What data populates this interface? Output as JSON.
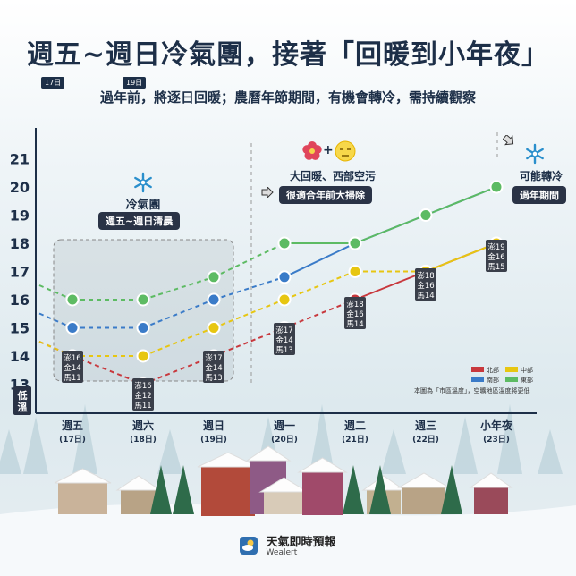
{
  "header": {
    "title": "週五~週日冷氣團，接著「回暖到小年夜」",
    "subtitle": "過年前，將逐日回暖；農曆年節期間，有機會轉冷，需持續觀察",
    "tag_17": "17日",
    "tag_19": "19日"
  },
  "annotations": {
    "cold_front": {
      "label": "冷氣團",
      "pill": "週五~週日清晨"
    },
    "warm": {
      "label": "大回暖、西部空污",
      "pill": "很適合年前大掃除"
    },
    "cooling": {
      "label": "可能轉冷",
      "pill": "過年期間"
    }
  },
  "footnote": "本圖為「市區溫度」，空曠地區溫度將更低",
  "footer": {
    "brand": "天氣即時預報",
    "brand_en": "Wealert"
  },
  "chart_data": {
    "type": "line",
    "title": "",
    "ylabel": "低溫",
    "ylim": [
      12,
      21
    ],
    "yticks": [
      13,
      14,
      15,
      16,
      17,
      18,
      19,
      20,
      21
    ],
    "categories": [
      {
        "day": "週五",
        "date": "(17日)"
      },
      {
        "day": "週六",
        "date": "(18日)"
      },
      {
        "day": "週日",
        "date": "(19日)"
      },
      {
        "day": "週一",
        "date": "(20日)"
      },
      {
        "day": "週二",
        "date": "(21日)"
      },
      {
        "day": "週三",
        "date": "(22日)"
      },
      {
        "day": "小年夜",
        "date": "(23日)"
      }
    ],
    "series": [
      {
        "name": "北部",
        "color": "#c8383d",
        "values": [
          14,
          13,
          14,
          15,
          16,
          17,
          18
        ]
      },
      {
        "name": "南部",
        "color": "#3a7bc8",
        "values": [
          15,
          15,
          16,
          16.8,
          18,
          19,
          20
        ]
      },
      {
        "name": "中部",
        "color": "#e7c611",
        "values": [
          14,
          14,
          15,
          16,
          17,
          17,
          18
        ]
      },
      {
        "name": "東部",
        "color": "#5dbb63",
        "values": [
          16,
          16,
          16.8,
          18,
          18,
          19,
          20
        ]
      }
    ],
    "island_labels": [
      [
        "澎16",
        "金14",
        "馬11"
      ],
      [
        "澎16",
        "金12",
        "馬11"
      ],
      [
        "澎17",
        "金14",
        "馬13"
      ],
      [
        "澎17",
        "金14",
        "馬13"
      ],
      [
        "澎18",
        "金16",
        "馬14"
      ],
      [
        "澎18",
        "金16",
        "馬14"
      ],
      [
        "澎19",
        "金16",
        "馬15"
      ]
    ],
    "legend_position": "bottom-right",
    "grid": false
  },
  "icons": {
    "snowflake": "snowflake-icon",
    "flower": "flower-icon",
    "smog": "smog-face-icon",
    "arrow": "arrow-right-icon",
    "logo": "cloud-sun-icon"
  }
}
